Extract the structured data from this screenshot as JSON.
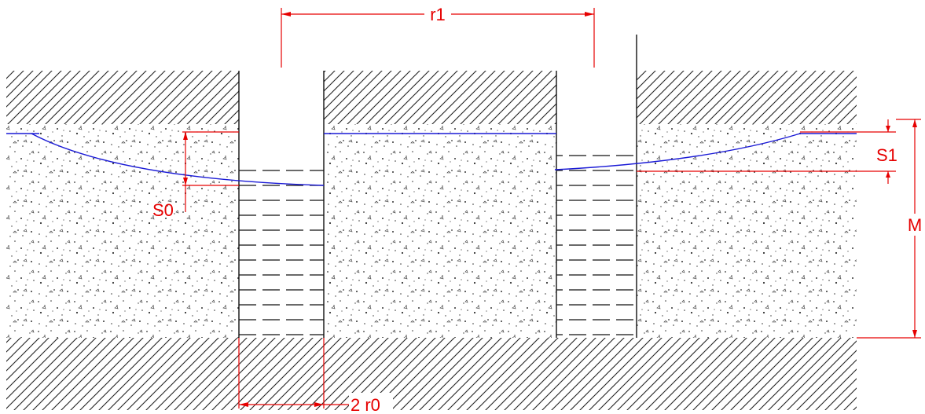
{
  "diagram": {
    "labels": {
      "r1": "r1",
      "s0": "S0",
      "s1": "S1",
      "m": "M",
      "two_r0": "2 r0"
    },
    "colors": {
      "dimension": "#e60000",
      "water_table": "#1a1ad6",
      "outline": "#111111",
      "hatch": "#222222",
      "sand_dots": "#333333",
      "background": "#ffffff"
    },
    "materials": {
      "top_layer": "impermeable-hatched",
      "aquifer": "sand-gravel-stipple",
      "bottom_layer": "impermeable-hatched",
      "wells": "water-filled"
    }
  }
}
